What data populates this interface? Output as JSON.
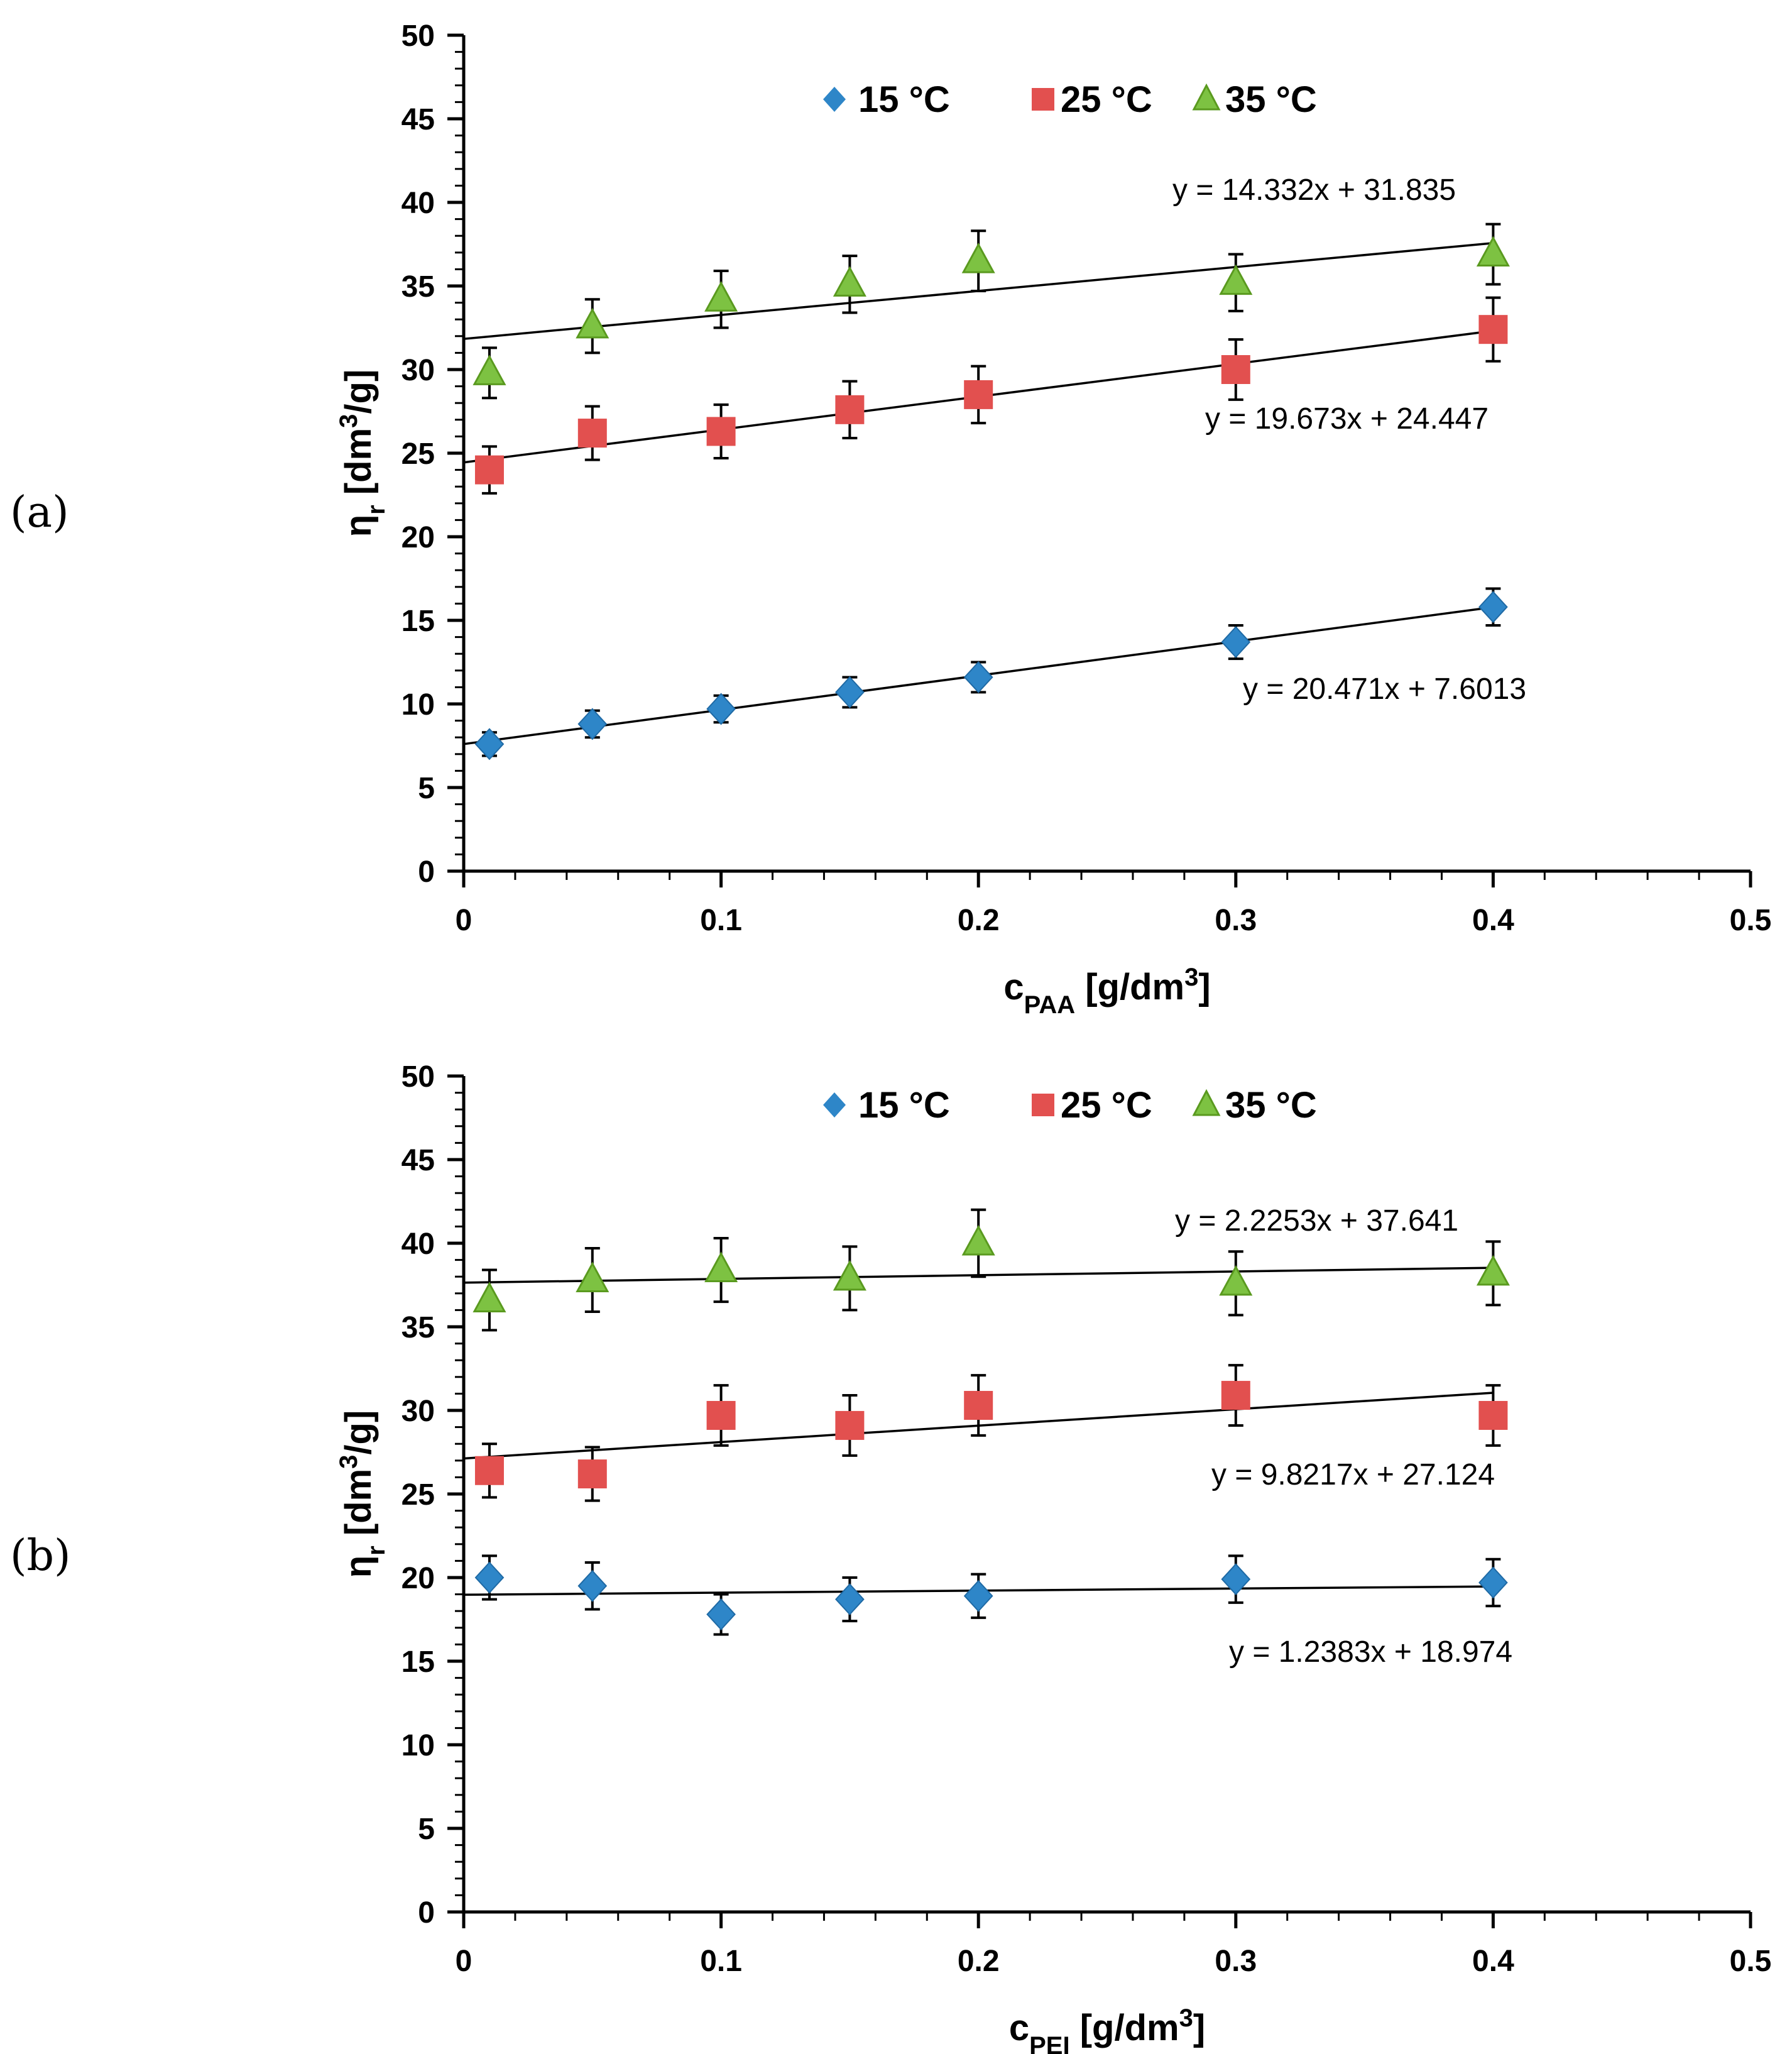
{
  "chart_data": [
    {
      "type": "scatter",
      "panel_label": "(a)",
      "ylabel": {
        "main": "η",
        "sub": "r",
        "rest": " [dm",
        "sup": "3",
        "end": "/g]"
      },
      "xlabel": {
        "main": "c",
        "sub": "PAA",
        "rest": " [g/dm",
        "sup": "3",
        "end": "]"
      },
      "xlim": [
        0,
        0.5
      ],
      "ylim": [
        0,
        50
      ],
      "xticks": [
        "0",
        "0.1",
        "0.2",
        "0.3",
        "0.4",
        "0.5"
      ],
      "yticks": [
        "0",
        "5",
        "10",
        "15",
        "20",
        "25",
        "30",
        "35",
        "40",
        "45",
        "50"
      ],
      "legend_position": "top-center",
      "x": [
        0.01,
        0.05,
        0.1,
        0.15,
        0.2,
        0.3,
        0.4
      ],
      "series": [
        {
          "name": "15 °C",
          "marker": "diamond",
          "color": "#2E86C8",
          "values": [
            7.6,
            8.8,
            9.7,
            10.7,
            11.6,
            13.7,
            15.8
          ],
          "error": [
            0.7,
            0.8,
            0.8,
            0.9,
            0.9,
            1.0,
            1.1
          ],
          "trendline": {
            "slope": 20.471,
            "intercept": 7.6013,
            "label": "y = 20.471x + 7.6013"
          }
        },
        {
          "name": "25 °C",
          "marker": "square",
          "color": "#E2504F",
          "values": [
            24.0,
            26.2,
            26.3,
            27.6,
            28.5,
            30.0,
            32.4
          ],
          "error": [
            1.4,
            1.6,
            1.6,
            1.7,
            1.7,
            1.8,
            1.9
          ],
          "trendline": {
            "slope": 19.673,
            "intercept": 24.447,
            "label": "y = 19.673x + 24.447"
          }
        },
        {
          "name": "35 °C",
          "marker": "triangle",
          "color": "#7DC242",
          "values": [
            29.8,
            32.6,
            34.2,
            35.1,
            36.5,
            35.2,
            36.9
          ],
          "error": [
            1.5,
            1.6,
            1.7,
            1.7,
            1.8,
            1.7,
            1.8
          ],
          "trendline": {
            "slope": 14.332,
            "intercept": 31.835,
            "label": "y = 14.332x + 31.835"
          }
        }
      ]
    },
    {
      "type": "scatter",
      "panel_label": "(b)",
      "ylabel": {
        "main": "η",
        "sub": "r",
        "rest": " [dm",
        "sup": "3",
        "end": "/g]"
      },
      "xlabel": {
        "main": "c",
        "sub": "PEI",
        "rest": " [g/dm",
        "sup": "3",
        "end": "]"
      },
      "xlim": [
        0,
        0.5
      ],
      "ylim": [
        0,
        50
      ],
      "xticks": [
        "0",
        "0.1",
        "0.2",
        "0.3",
        "0.4",
        "0.5"
      ],
      "yticks": [
        "0",
        "5",
        "10",
        "15",
        "20",
        "25",
        "30",
        "35",
        "40",
        "45",
        "50"
      ],
      "legend_position": "top-center",
      "x": [
        0.01,
        0.05,
        0.1,
        0.15,
        0.2,
        0.3,
        0.4
      ],
      "series": [
        {
          "name": "15 °C",
          "marker": "diamond",
          "color": "#2E86C8",
          "values": [
            20.0,
            19.5,
            17.8,
            18.7,
            18.9,
            19.9,
            19.7
          ],
          "error": [
            1.3,
            1.4,
            1.2,
            1.3,
            1.3,
            1.4,
            1.4
          ],
          "trendline": {
            "slope": 1.2383,
            "intercept": 18.974,
            "label": "y = 1.2383x + 18.974"
          }
        },
        {
          "name": "25 °C",
          "marker": "square",
          "color": "#E2504F",
          "values": [
            26.4,
            26.2,
            29.7,
            29.1,
            30.3,
            30.9,
            29.7
          ],
          "error": [
            1.6,
            1.6,
            1.8,
            1.8,
            1.8,
            1.8,
            1.8
          ],
          "trendline": {
            "slope": 9.8217,
            "intercept": 27.124,
            "label": "y = 9.8217x + 27.124"
          }
        },
        {
          "name": "35 °C",
          "marker": "triangle",
          "color": "#7DC242",
          "values": [
            36.6,
            37.8,
            38.4,
            37.9,
            40.0,
            37.6,
            38.2
          ],
          "error": [
            1.8,
            1.9,
            1.9,
            1.9,
            2.0,
            1.9,
            1.9
          ],
          "trendline": {
            "slope": 2.2253,
            "intercept": 37.641,
            "label": "y = 2.2253x + 37.641"
          }
        }
      ]
    }
  ]
}
